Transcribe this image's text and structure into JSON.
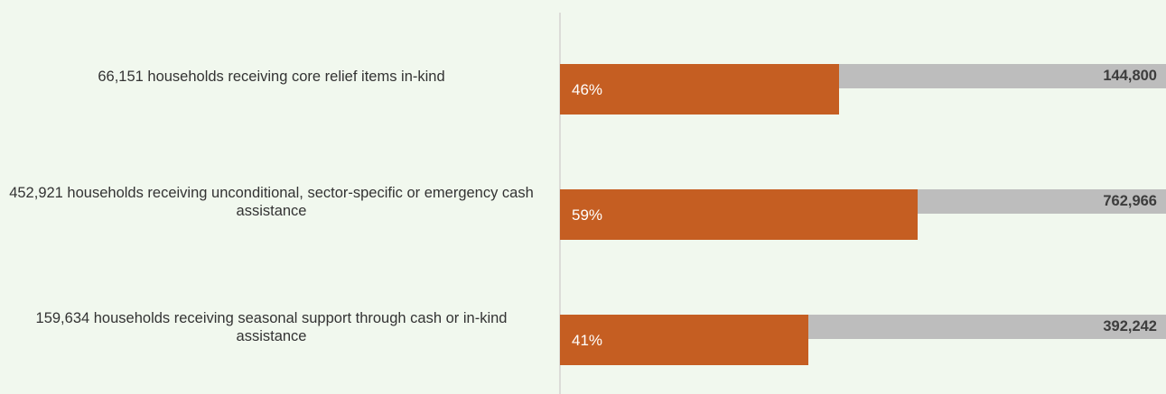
{
  "chart_data": {
    "type": "bar",
    "orientation": "horizontal",
    "categories": [
      "66,151 households receiving core relief items in-kind",
      "452,921 households receiving unconditional, sector-specific or emergency cash assistance",
      "159,634 households receiving seasonal support through cash or in-kind assistance"
    ],
    "series": [
      {
        "values": [
          46,
          59,
          41
        ],
        "labels": [
          "46%",
          "59%",
          "41%"
        ],
        "color": "#c55e22"
      },
      {
        "values": [
          100,
          100,
          100
        ],
        "labels": [
          "144,800",
          "762,966",
          "392,242"
        ],
        "color": "#bdbdbd"
      }
    ],
    "xlim": [
      0,
      100
    ],
    "grid": false
  }
}
